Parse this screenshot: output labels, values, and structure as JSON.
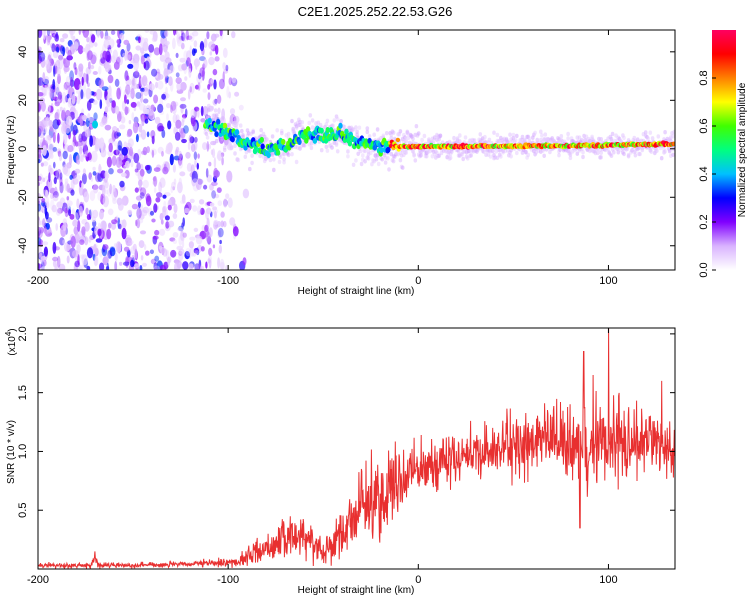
{
  "title": "C2E1.2025.252.22.53.G26",
  "chart_data": [
    {
      "type": "heatmap",
      "name": "spectrogram",
      "xlabel": "Height of straight line (km)",
      "ylabel": "Frequency (Hz)",
      "xlim": [
        -200,
        135
      ],
      "ylim": [
        -50,
        49
      ],
      "xticks": [
        -200,
        -100,
        0,
        100
      ],
      "xtick_labels": [
        "-200",
        "-100",
        "0",
        "100"
      ],
      "yticks": [
        -40,
        -20,
        0,
        20,
        40
      ],
      "ytick_labels": [
        "-40",
        "-20",
        "0",
        "20",
        "40"
      ],
      "colorbar": {
        "label": "Normalized spectral amplitude",
        "range": [
          0,
          1
        ],
        "ticks": [
          0.0,
          0.2,
          0.4,
          0.6,
          0.8
        ],
        "tick_labels": [
          "0.0",
          "0.2",
          "0.4",
          "0.6",
          "0.8"
        ],
        "colors": [
          "#ffffff",
          "#d9b3ff",
          "#8000ff",
          "#0000ff",
          "#00c0ff",
          "#00ff80",
          "#40ff00",
          "#ffff00",
          "#ff8000",
          "#ff0000",
          "#ff0060"
        ]
      },
      "noise_region_x": [
        -200,
        -90
      ],
      "signal_track": [
        {
          "x": -170,
          "f": 10
        },
        {
          "x": -110,
          "f": 10
        },
        {
          "x": -100,
          "f": 7
        },
        {
          "x": -90,
          "f": 2
        },
        {
          "x": -80,
          "f": 0
        },
        {
          "x": -70,
          "f": 1
        },
        {
          "x": -60,
          "f": 6
        },
        {
          "x": -50,
          "f": 5
        },
        {
          "x": -40,
          "f": 6
        },
        {
          "x": -30,
          "f": 2
        },
        {
          "x": -20,
          "f": 1
        },
        {
          "x": 0,
          "f": 1
        },
        {
          "x": 50,
          "f": 1
        },
        {
          "x": 100,
          "f": 1.5
        },
        {
          "x": 135,
          "f": 2
        }
      ]
    },
    {
      "type": "line",
      "name": "snr",
      "xlabel": "Height of straight line (km)",
      "ylabel": "SNR (10 * v/v)",
      "y_multiplier_label": "(x10",
      "y_multiplier_exp": "4",
      "xlim": [
        -200,
        135
      ],
      "ylim": [
        0,
        2.05
      ],
      "xticks": [
        -200,
        -100,
        0,
        100
      ],
      "xtick_labels": [
        "-200",
        "-100",
        "0",
        "100"
      ],
      "yticks": [
        0.5,
        1.0,
        1.5,
        2.0
      ],
      "ytick_labels": [
        "0.5",
        "1.0",
        "1.5",
        "2.0"
      ],
      "color": "#e83030",
      "envelope": [
        {
          "x": -200,
          "mean": 0.03,
          "spread": 0.02
        },
        {
          "x": -172,
          "mean": 0.03,
          "spread": 0.02
        },
        {
          "x": -170,
          "mean": 0.1,
          "spread": 0.04
        },
        {
          "x": -168,
          "mean": 0.03,
          "spread": 0.02
        },
        {
          "x": -120,
          "mean": 0.04,
          "spread": 0.02
        },
        {
          "x": -95,
          "mean": 0.06,
          "spread": 0.04
        },
        {
          "x": -85,
          "mean": 0.15,
          "spread": 0.1
        },
        {
          "x": -70,
          "mean": 0.25,
          "spread": 0.15
        },
        {
          "x": -60,
          "mean": 0.3,
          "spread": 0.15
        },
        {
          "x": -50,
          "mean": 0.15,
          "spread": 0.1
        },
        {
          "x": -40,
          "mean": 0.3,
          "spread": 0.2
        },
        {
          "x": -30,
          "mean": 0.55,
          "spread": 0.25
        },
        {
          "x": -20,
          "mean": 0.6,
          "spread": 0.35
        },
        {
          "x": -10,
          "mean": 0.75,
          "spread": 0.3
        },
        {
          "x": 0,
          "mean": 0.85,
          "spread": 0.2
        },
        {
          "x": 20,
          "mean": 0.95,
          "spread": 0.2
        },
        {
          "x": 40,
          "mean": 1.0,
          "spread": 0.2
        },
        {
          "x": 50,
          "mean": 1.05,
          "spread": 0.25
        },
        {
          "x": 70,
          "mean": 1.1,
          "spread": 0.25
        },
        {
          "x": 85,
          "mean": 1.05,
          "spread": 0.35
        },
        {
          "x": 100,
          "mean": 1.1,
          "spread": 0.35
        },
        {
          "x": 120,
          "mean": 1.1,
          "spread": 0.25
        },
        {
          "x": 135,
          "mean": 1.0,
          "spread": 0.2
        }
      ],
      "peaks": [
        {
          "x": 100,
          "y": 2.05
        },
        {
          "x": 87,
          "y": 1.85
        },
        {
          "x": 85,
          "y": 0.35
        },
        {
          "x": 92,
          "y": 1.65
        },
        {
          "x": 128,
          "y": 1.6
        },
        {
          "x": -170,
          "y": 0.15
        }
      ]
    }
  ]
}
